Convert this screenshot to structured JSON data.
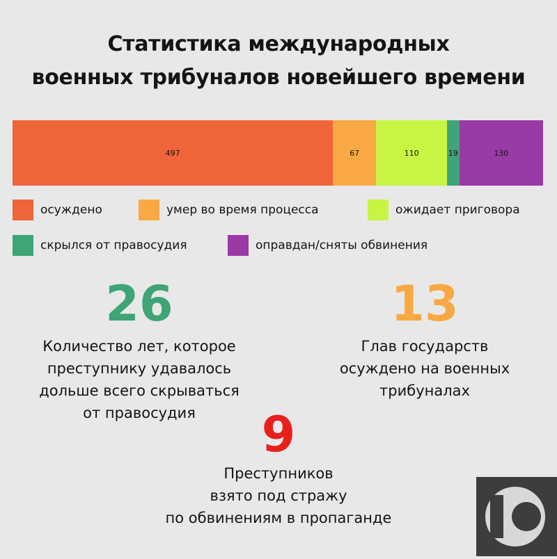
{
  "title": {
    "line1": "Статистика международных",
    "line2": "военных трибуналов новейшего времени"
  },
  "chart_data": {
    "type": "bar",
    "orientation": "horizontal-stacked",
    "series": [
      {
        "name": "осуждено",
        "value": 497,
        "color": "#f0643a"
      },
      {
        "name": "умер во время процесса",
        "value": 67,
        "color": "#f8a943"
      },
      {
        "name": "ожидает приговора",
        "value": 110,
        "color": "#c8f544"
      },
      {
        "name": "скрылся от правосудия",
        "value": 19,
        "color": "#3fa476"
      },
      {
        "name": "оправдан/сняты обвинения",
        "value": 130,
        "color": "#9a3aa6"
      }
    ],
    "legend_position": "bottom"
  },
  "stats": [
    {
      "number": "26",
      "color": "#3fa476",
      "lines": [
        "Количество лет, которое",
        "преступнику удавалось",
        "дольше всего скрываться",
        "от правосудия"
      ]
    },
    {
      "number": "13",
      "color": "#f8a943",
      "lines": [
        "Глав государств",
        "осуждено на военных",
        "трибуналах"
      ]
    },
    {
      "number": "9",
      "color": "#e8201c",
      "lines": [
        "Преступников",
        "взято под стражу",
        "по обвинениям в пропаганде"
      ]
    }
  ],
  "logo": {
    "icon": "ten-logo-icon"
  }
}
